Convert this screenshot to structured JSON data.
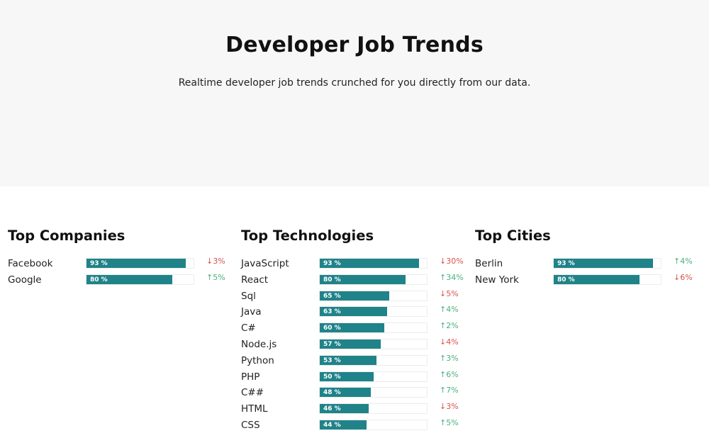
{
  "hero": {
    "title": "Developer Job Trends",
    "subtitle": "Realtime developer job trends crunched for you directly from our data."
  },
  "colors": {
    "bar": "#1f8389",
    "up": "#4caf7d",
    "down": "#d9534f"
  },
  "sections": [
    {
      "title": "Top Companies",
      "items": [
        {
          "name": "Facebook",
          "pct": 93,
          "pct_label": "93 %",
          "dir": "down",
          "change": "3%"
        },
        {
          "name": "Google",
          "pct": 80,
          "pct_label": "80 %",
          "dir": "up",
          "change": "5%"
        }
      ]
    },
    {
      "title": "Top Technologies",
      "items": [
        {
          "name": "JavaScript",
          "pct": 93,
          "pct_label": "93 %",
          "dir": "down",
          "change": "30%"
        },
        {
          "name": "React",
          "pct": 80,
          "pct_label": "80 %",
          "dir": "up",
          "change": "34%"
        },
        {
          "name": "Sql",
          "pct": 65,
          "pct_label": "65 %",
          "dir": "down",
          "change": "5%"
        },
        {
          "name": "Java",
          "pct": 63,
          "pct_label": "63 %",
          "dir": "up",
          "change": "4%"
        },
        {
          "name": "C#",
          "pct": 60,
          "pct_label": "60 %",
          "dir": "up",
          "change": "2%"
        },
        {
          "name": "Node.js",
          "pct": 57,
          "pct_label": "57 %",
          "dir": "down",
          "change": "4%"
        },
        {
          "name": "Python",
          "pct": 53,
          "pct_label": "53 %",
          "dir": "up",
          "change": "3%"
        },
        {
          "name": "PHP",
          "pct": 50,
          "pct_label": "50 %",
          "dir": "up",
          "change": "6%"
        },
        {
          "name": "C##",
          "pct": 48,
          "pct_label": "48 %",
          "dir": "up",
          "change": "7%"
        },
        {
          "name": "HTML",
          "pct": 46,
          "pct_label": "46 %",
          "dir": "down",
          "change": "3%"
        },
        {
          "name": "CSS",
          "pct": 44,
          "pct_label": "44 %",
          "dir": "up",
          "change": "5%"
        }
      ]
    },
    {
      "title": "Top Cities",
      "items": [
        {
          "name": "Berlin",
          "pct": 93,
          "pct_label": "93 %",
          "dir": "up",
          "change": "4%"
        },
        {
          "name": "New York",
          "pct": 80,
          "pct_label": "80 %",
          "dir": "down",
          "change": "6%"
        }
      ]
    }
  ]
}
